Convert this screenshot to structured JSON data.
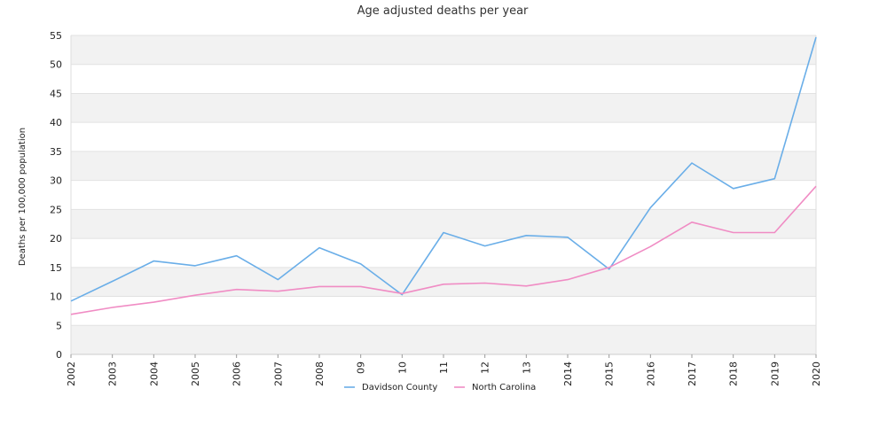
{
  "chart_data": {
    "type": "line",
    "title": "Age adjusted deaths per year",
    "xlabel": "",
    "ylabel": "Deaths per 100,000 population",
    "categories": [
      "2002",
      "2003",
      "2004",
      "2005",
      "2006",
      "2007",
      "2008",
      "09",
      "10",
      "11",
      "12",
      "13",
      "2014",
      "2015",
      "2016",
      "2017",
      "2018",
      "2019",
      "2020"
    ],
    "ylim": [
      0,
      55
    ],
    "yticks": [
      0,
      5,
      10,
      15,
      20,
      25,
      30,
      35,
      40,
      45,
      50,
      55
    ],
    "grid": "horizontal alternating bands",
    "legend": "bottom-center",
    "series": [
      {
        "name": "Davidson County",
        "color": "#6aaee8",
        "values": [
          9.2,
          12.6,
          16.1,
          15.3,
          17.0,
          12.9,
          18.4,
          15.6,
          10.3,
          21.0,
          18.7,
          20.5,
          20.2,
          14.7,
          25.3,
          33.0,
          28.6,
          30.3,
          54.7
        ]
      },
      {
        "name": "North Carolina",
        "color": "#f08cc4",
        "values": [
          6.9,
          8.1,
          9.0,
          10.2,
          11.2,
          10.9,
          11.7,
          11.7,
          10.5,
          12.1,
          12.3,
          11.8,
          12.9,
          15.0,
          18.6,
          22.8,
          21.0,
          21.0,
          29.0
        ]
      }
    ]
  }
}
